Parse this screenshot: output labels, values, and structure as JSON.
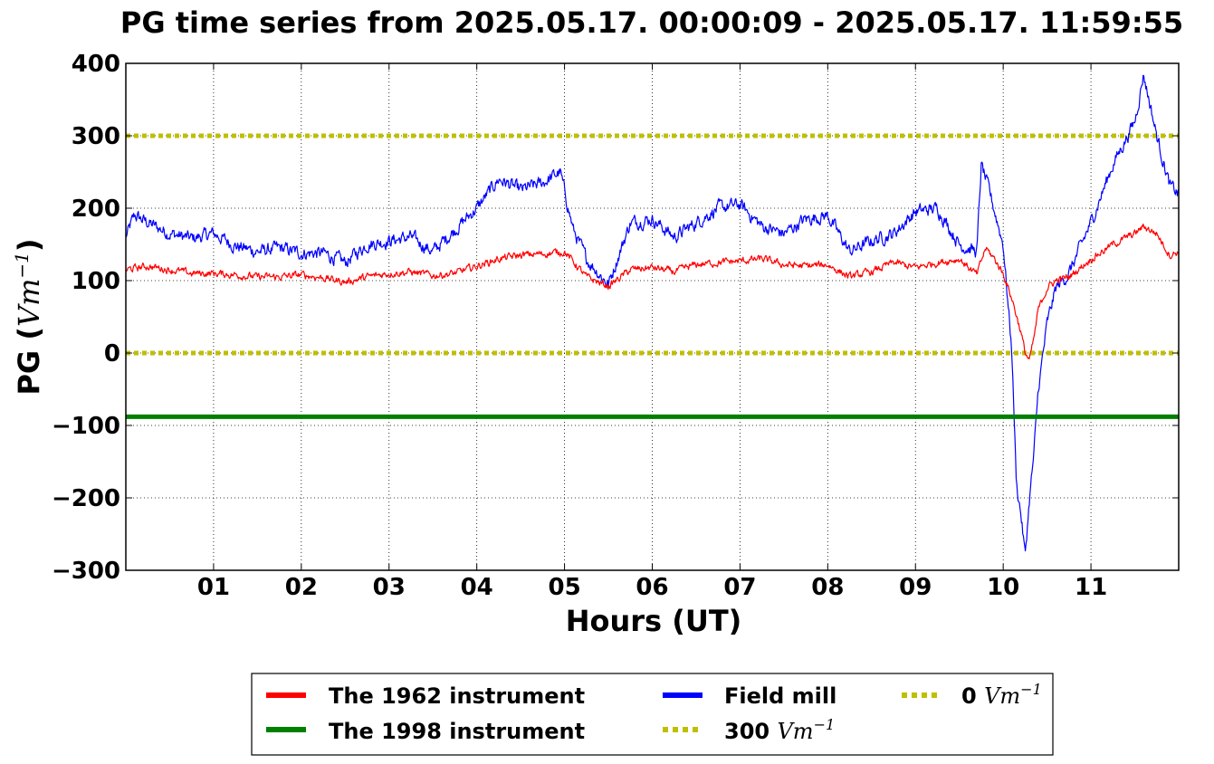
{
  "chart_data": {
    "type": "line",
    "title": "PG time series from 2025.05.17. 00:00:09 - 2025.05.17. 11:59:55",
    "xlabel": "Hours (UT)",
    "ylabel_prefix": "PG (",
    "ylabel_unit": "Vm",
    "ylabel_exp": "−1",
    "ylabel_suffix": ")",
    "xlim": [
      0,
      12
    ],
    "ylim": [
      -300,
      400
    ],
    "xticks": [
      1,
      2,
      3,
      4,
      5,
      6,
      7,
      8,
      9,
      10,
      11
    ],
    "xtick_labels": [
      "01",
      "02",
      "03",
      "04",
      "05",
      "06",
      "07",
      "08",
      "09",
      "10",
      "11"
    ],
    "yticks": [
      -300,
      -200,
      -100,
      0,
      100,
      200,
      300,
      400
    ],
    "ytick_labels": [
      "−300",
      "−200",
      "−100",
      "0",
      "100",
      "200",
      "300",
      "400"
    ],
    "grid": true,
    "legend_placement": "bottom-center",
    "series": [
      {
        "name": "The 1962 instrument",
        "color": "#ff0000",
        "style": "solid",
        "x": [
          0,
          0.25,
          0.5,
          0.75,
          1,
          1.25,
          1.5,
          1.75,
          2,
          2.25,
          2.5,
          2.75,
          3,
          3.25,
          3.5,
          3.75,
          4,
          4.25,
          4.5,
          4.75,
          5,
          5.25,
          5.5,
          5.75,
          6,
          6.25,
          6.5,
          6.75,
          7,
          7.25,
          7.5,
          7.75,
          8,
          8.25,
          8.5,
          8.75,
          9,
          9.25,
          9.5,
          9.7,
          9.8,
          9.9,
          10,
          10.1,
          10.2,
          10.25,
          10.3,
          10.35,
          10.4,
          10.5,
          10.6,
          10.75,
          11,
          11.25,
          11.5,
          11.6,
          11.75,
          11.9,
          12
        ],
        "y": [
          115,
          120,
          115,
          110,
          110,
          108,
          105,
          105,
          108,
          104,
          98,
          105,
          110,
          112,
          107,
          110,
          120,
          130,
          135,
          137,
          140,
          105,
          92,
          115,
          118,
          112,
          122,
          125,
          127,
          130,
          122,
          120,
          122,
          105,
          112,
          125,
          118,
          125,
          130,
          108,
          145,
          130,
          110,
          75,
          30,
          0,
          -10,
          20,
          60,
          90,
          100,
          105,
          130,
          150,
          165,
          175,
          165,
          135,
          140
        ]
      },
      {
        "name": "Field mill",
        "color": "#0000ff",
        "style": "solid",
        "x": [
          0,
          0.1,
          0.25,
          0.5,
          0.75,
          1,
          1.25,
          1.5,
          1.75,
          2,
          2.25,
          2.5,
          2.75,
          3,
          3.25,
          3.5,
          3.75,
          4,
          4.25,
          4.5,
          4.75,
          4.95,
          5.1,
          5.25,
          5.5,
          5.75,
          6,
          6.25,
          6.5,
          6.75,
          7,
          7.25,
          7.5,
          7.75,
          8,
          8.25,
          8.5,
          8.75,
          9,
          9.25,
          9.5,
          9.7,
          9.75,
          9.85,
          10,
          10.1,
          10.15,
          10.2,
          10.25,
          10.3,
          10.35,
          10.4,
          10.5,
          10.6,
          10.75,
          11,
          11.25,
          11.5,
          11.6,
          11.75,
          11.9,
          12
        ],
        "y": [
          160,
          190,
          180,
          165,
          158,
          165,
          148,
          140,
          145,
          138,
          138,
          125,
          150,
          155,
          160,
          140,
          170,
          200,
          240,
          225,
          235,
          250,
          170,
          130,
          95,
          180,
          185,
          160,
          180,
          200,
          205,
          175,
          165,
          185,
          190,
          140,
          155,
          165,
          195,
          200,
          150,
          140,
          260,
          220,
          150,
          0,
          -180,
          -220,
          -280,
          -200,
          -140,
          -50,
          40,
          90,
          110,
          180,
          260,
          320,
          385,
          300,
          230,
          220
        ]
      },
      {
        "name": "The 1998 instrument",
        "color": "#008000",
        "style": "solid",
        "x": [
          0,
          12
        ],
        "y": [
          -88,
          -88
        ]
      }
    ],
    "reference_lines": [
      {
        "value": 300,
        "name_value": "300",
        "name_unit": "Vm",
        "name_exp": "−1",
        "color": "#bfbf00",
        "style": "dotted"
      },
      {
        "value": 0,
        "name_value": "0",
        "name_unit": "Vm",
        "name_exp": "−1",
        "color": "#bfbf00",
        "style": "dotted"
      }
    ]
  }
}
